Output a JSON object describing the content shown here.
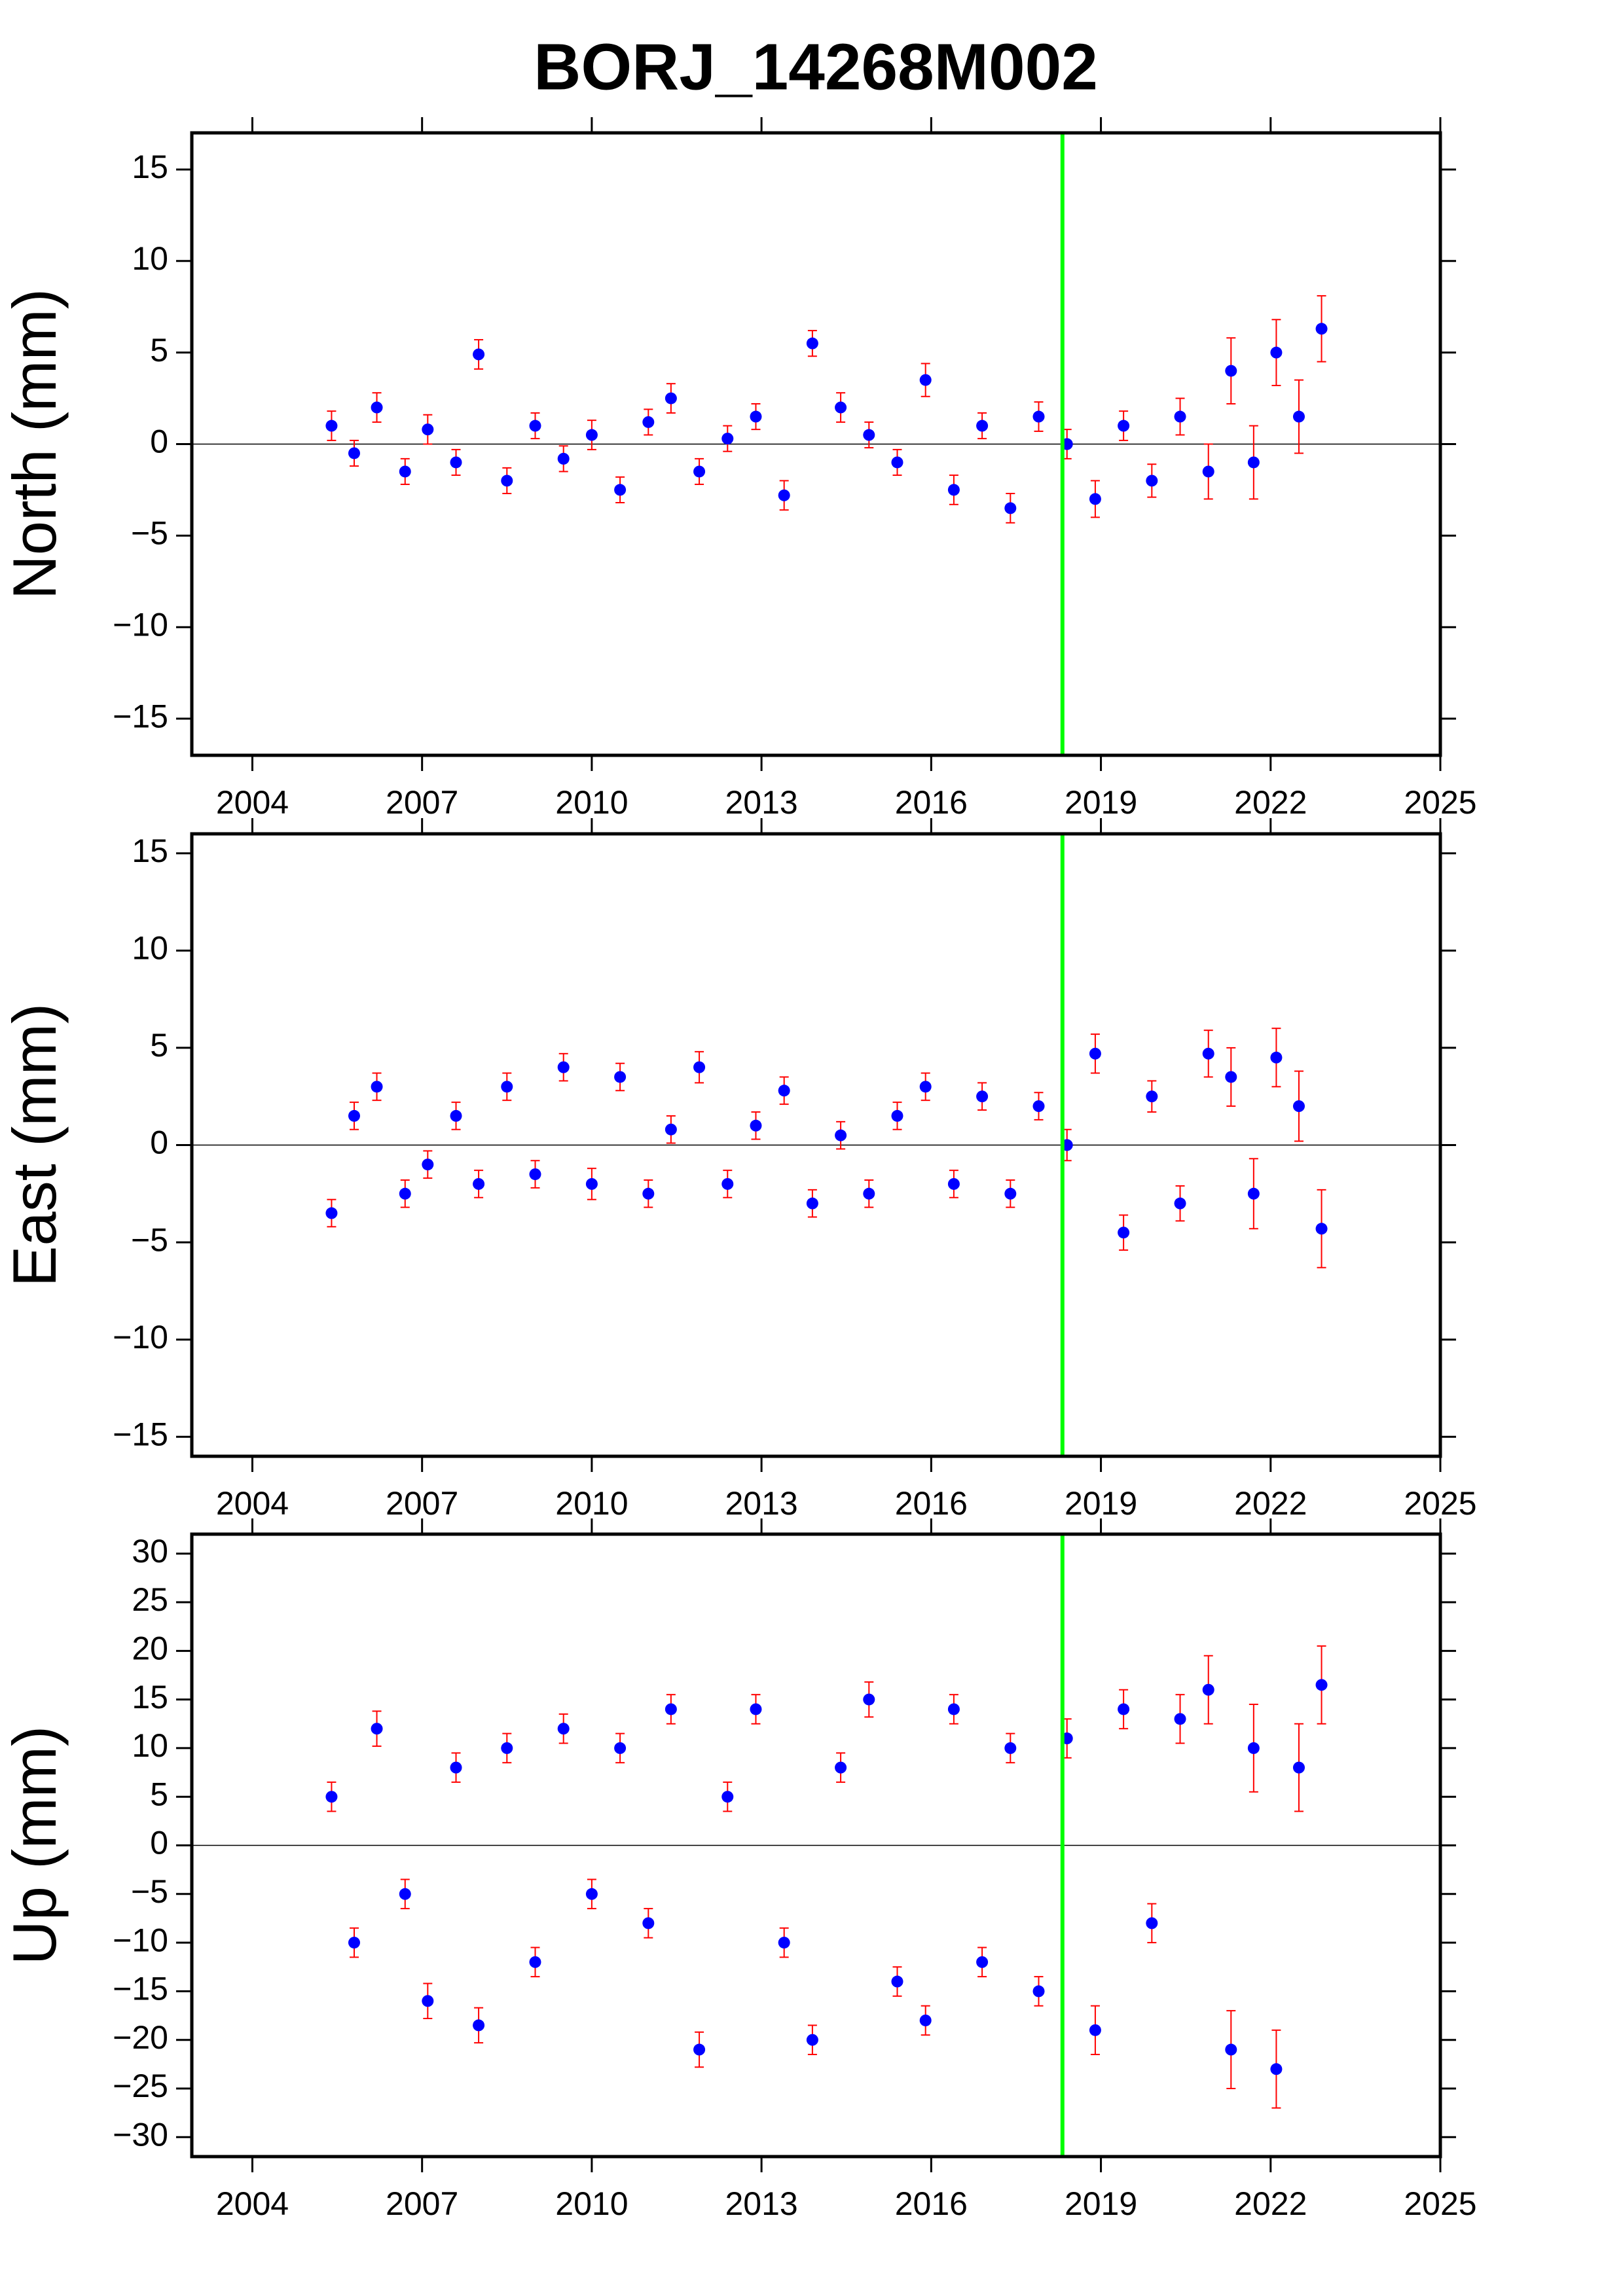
{
  "title": "BORJ_14268M002",
  "chart_data": [
    {
      "type": "scatter",
      "ylabel": "North (mm)",
      "x": [
        2005.4,
        2005.8,
        2006.2,
        2006.7,
        2007.1,
        2007.6,
        2008.0,
        2008.5,
        2009.0,
        2009.5,
        2010.0,
        2010.5,
        2011.0,
        2011.4,
        2011.9,
        2012.4,
        2012.9,
        2013.4,
        2013.9,
        2014.4,
        2014.9,
        2015.4,
        2015.9,
        2016.4,
        2016.9,
        2017.4,
        2017.9,
        2018.4,
        2018.9,
        2019.4,
        2019.9,
        2020.4,
        2020.9,
        2021.3,
        2021.7,
        2022.1,
        2022.5,
        2022.9
      ],
      "values": [
        1.0,
        -0.5,
        2.0,
        -1.5,
        0.8,
        -1.0,
        4.9,
        -2.0,
        1.0,
        -0.8,
        0.5,
        -2.5,
        1.2,
        2.5,
        -1.5,
        0.3,
        1.5,
        -2.8,
        5.5,
        2.0,
        0.5,
        -1.0,
        3.5,
        -2.5,
        1.0,
        -3.5,
        1.5,
        0.0,
        -3.0,
        1.0,
        -2.0,
        1.5,
        -1.5,
        4.0,
        -1.0,
        5.0,
        1.5,
        6.3
      ],
      "errors": [
        0.8,
        0.7,
        0.8,
        0.7,
        0.8,
        0.7,
        0.8,
        0.7,
        0.7,
        0.7,
        0.8,
        0.7,
        0.7,
        0.8,
        0.7,
        0.7,
        0.7,
        0.8,
        0.7,
        0.8,
        0.7,
        0.7,
        0.9,
        0.8,
        0.7,
        0.8,
        0.8,
        0.8,
        1.0,
        0.8,
        0.9,
        1.0,
        1.5,
        1.8,
        2.0,
        1.8,
        2.0,
        1.8
      ],
      "xlim": [
        2002.93,
        2025
      ],
      "ylim": [
        -17,
        17
      ],
      "xticks": [
        2004,
        2007,
        2010,
        2013,
        2016,
        2019,
        2022,
        2025
      ],
      "yticks": [
        {
          "value": -15,
          "label": "−15"
        },
        {
          "value": -10,
          "label": "−10"
        },
        {
          "value": -5,
          "label": "−5"
        },
        0,
        5,
        10,
        15
      ],
      "color": "#0000ff",
      "error_color": "#ff0000",
      "vline": 2018.32,
      "vline_color": "#00ff00"
    },
    {
      "type": "scatter",
      "ylabel": "East (mm)",
      "x": [
        2005.4,
        2005.8,
        2006.2,
        2006.7,
        2007.1,
        2007.6,
        2008.0,
        2008.5,
        2009.0,
        2009.5,
        2010.0,
        2010.5,
        2011.0,
        2011.4,
        2011.9,
        2012.4,
        2012.9,
        2013.4,
        2013.9,
        2014.4,
        2014.9,
        2015.4,
        2015.9,
        2016.4,
        2016.9,
        2017.4,
        2017.9,
        2018.4,
        2018.9,
        2019.4,
        2019.9,
        2020.4,
        2020.9,
        2021.3,
        2021.7,
        2022.1,
        2022.5,
        2022.9
      ],
      "values": [
        -3.5,
        1.5,
        3.0,
        -2.5,
        -1.0,
        1.5,
        -2.0,
        3.0,
        -1.5,
        4.0,
        -2.0,
        3.5,
        -2.5,
        0.8,
        4.0,
        -2.0,
        1.0,
        2.8,
        -3.0,
        0.5,
        -2.5,
        1.5,
        3.0,
        -2.0,
        2.5,
        -2.5,
        2.0,
        0.0,
        4.7,
        -4.5,
        2.5,
        -3.0,
        4.7,
        3.5,
        -2.5,
        4.5,
        2.0,
        -4.3
      ],
      "errors": [
        0.7,
        0.7,
        0.7,
        0.7,
        0.7,
        0.7,
        0.7,
        0.7,
        0.7,
        0.7,
        0.8,
        0.7,
        0.7,
        0.7,
        0.8,
        0.7,
        0.7,
        0.7,
        0.7,
        0.7,
        0.7,
        0.7,
        0.7,
        0.7,
        0.7,
        0.7,
        0.7,
        0.8,
        1.0,
        0.9,
        0.8,
        0.9,
        1.2,
        1.5,
        1.8,
        1.5,
        1.8,
        2.0
      ],
      "xlim": [
        2002.93,
        2025
      ],
      "ylim": [
        -16,
        16
      ],
      "xticks": [
        2004,
        2007,
        2010,
        2013,
        2016,
        2019,
        2022,
        2025
      ],
      "yticks": [
        {
          "value": -15,
          "label": "−15"
        },
        {
          "value": -10,
          "label": "−10"
        },
        {
          "value": -5,
          "label": "−5"
        },
        0,
        5,
        10,
        15
      ],
      "color": "#0000ff",
      "error_color": "#ff0000",
      "vline": 2018.32,
      "vline_color": "#00ff00"
    },
    {
      "type": "scatter",
      "ylabel": "Up (mm)",
      "x": [
        2005.4,
        2005.8,
        2006.2,
        2006.7,
        2007.1,
        2007.6,
        2008.0,
        2008.5,
        2009.0,
        2009.5,
        2010.0,
        2010.5,
        2011.0,
        2011.4,
        2011.9,
        2012.4,
        2012.9,
        2013.4,
        2013.9,
        2014.4,
        2014.9,
        2015.4,
        2015.9,
        2016.4,
        2016.9,
        2017.4,
        2017.9,
        2018.4,
        2018.9,
        2019.4,
        2019.9,
        2020.4,
        2020.9,
        2021.3,
        2021.7,
        2022.1,
        2022.5,
        2022.9
      ],
      "values": [
        5.0,
        -10.0,
        12.0,
        -5.0,
        -16.0,
        8.0,
        -18.5,
        10.0,
        -12.0,
        12.0,
        -5.0,
        10.0,
        -8.0,
        14.0,
        -21.0,
        5.0,
        14.0,
        -10.0,
        -20.0,
        8.0,
        15.0,
        -14.0,
        -18.0,
        14.0,
        -12.0,
        10.0,
        -15.0,
        11.0,
        -19.0,
        14.0,
        -8.0,
        13.0,
        16.0,
        -21.0,
        10.0,
        -23.0,
        8.0,
        16.5
      ],
      "errors": [
        1.5,
        1.5,
        1.8,
        1.5,
        1.8,
        1.5,
        1.8,
        1.5,
        1.5,
        1.5,
        1.5,
        1.5,
        1.5,
        1.5,
        1.8,
        1.5,
        1.5,
        1.5,
        1.5,
        1.5,
        1.8,
        1.5,
        1.5,
        1.5,
        1.5,
        1.5,
        1.5,
        2.0,
        2.5,
        2.0,
        2.0,
        2.5,
        3.5,
        4.0,
        4.5,
        4.0,
        4.5,
        4.0
      ],
      "xlim": [
        2002.93,
        2025
      ],
      "ylim": [
        -32,
        32
      ],
      "xticks": [
        2004,
        2007,
        2010,
        2013,
        2016,
        2019,
        2022,
        2025
      ],
      "yticks": [
        {
          "value": -30,
          "label": "−30"
        },
        {
          "value": -25,
          "label": "−25"
        },
        {
          "value": -20,
          "label": "−20"
        },
        {
          "value": -15,
          "label": "−15"
        },
        {
          "value": -10,
          "label": "−10"
        },
        {
          "value": -5,
          "label": "−5"
        },
        0,
        5,
        10,
        15,
        20,
        25,
        30
      ],
      "color": "#0000ff",
      "error_color": "#ff0000",
      "vline": 2018.32,
      "vline_color": "#00ff00"
    }
  ]
}
